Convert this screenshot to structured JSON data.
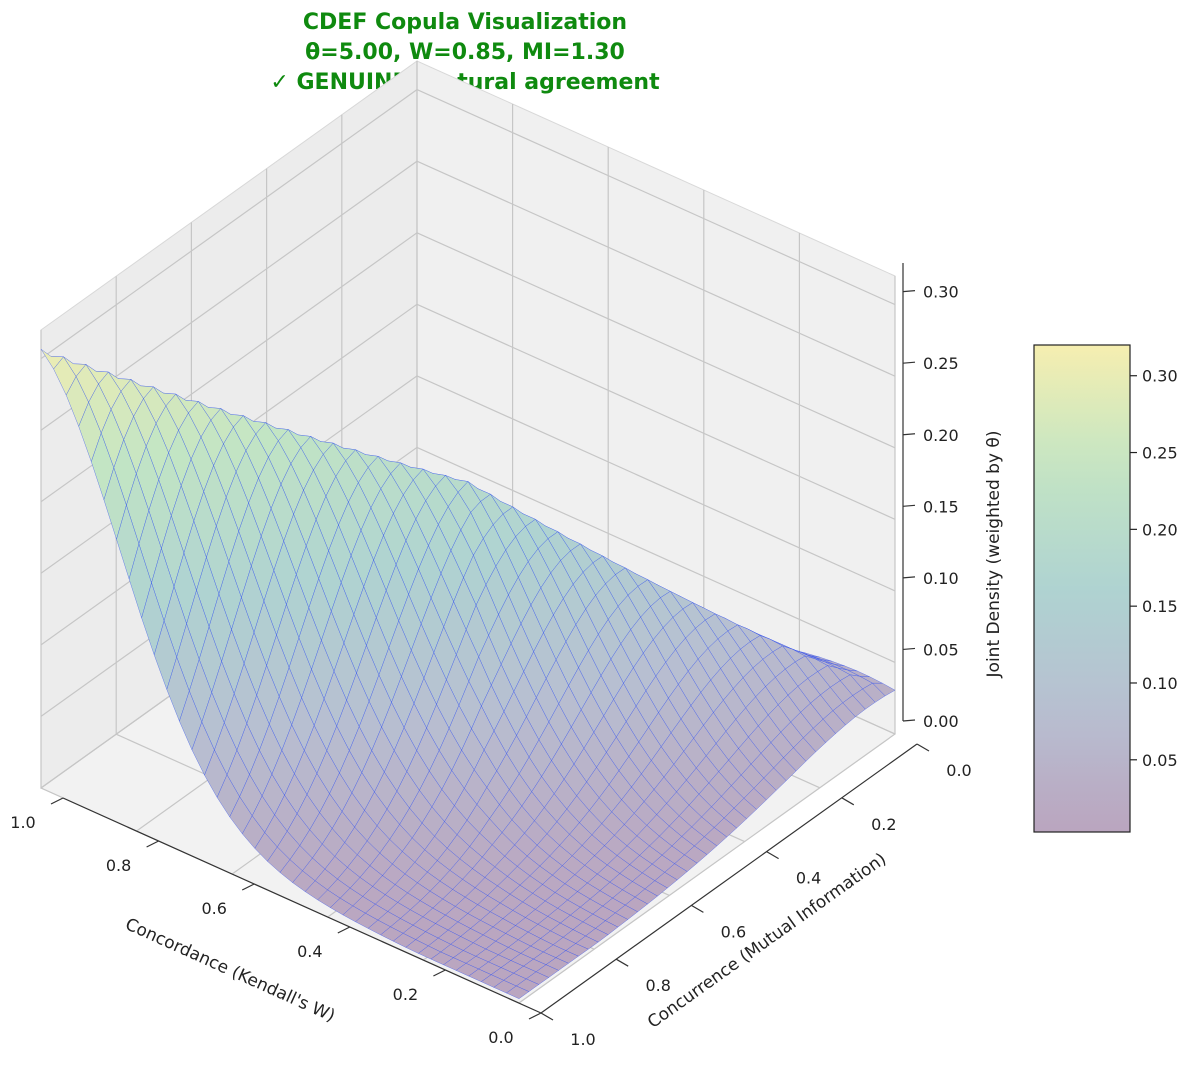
{
  "title": {
    "line1": "CDEF Copula Visualization",
    "line2": "θ=5.00, W=0.85, MI=1.30",
    "line3": "✓ GENUINE: Natural agreement",
    "color": "#0f8a0f"
  },
  "chart_data": {
    "type": "surface3d",
    "xlabel": "Concordance (Kendall's W)",
    "ylabel": "Concurrence (Mutual Information)",
    "zlabel": "Joint Density (weighted by θ)",
    "x_ticks": [
      "0.0",
      "0.2",
      "0.4",
      "0.6",
      "0.8",
      "1.0"
    ],
    "y_ticks": [
      "0.0",
      "0.2",
      "0.4",
      "0.6",
      "0.8",
      "1.0"
    ],
    "z_ticks": [
      "0.00",
      "0.05",
      "0.10",
      "0.15",
      "0.20",
      "0.25",
      "0.30"
    ],
    "xlim": [
      0,
      1
    ],
    "ylim": [
      0,
      1
    ],
    "zlim": [
      0,
      0.32
    ],
    "colormap": "viridis (alpha 0.3)",
    "wireframe_color": "#1f3fe0",
    "colorbar": {
      "ticks": [
        "0.05",
        "0.10",
        "0.15",
        "0.20",
        "0.25",
        "0.30"
      ],
      "range": [
        0.003,
        0.32
      ]
    },
    "grid": true,
    "surface_samples": [
      {
        "x": 1.0,
        "y": 0.0,
        "z": 0.003
      },
      {
        "x": 1.0,
        "y": 1.0,
        "z": 0.3
      },
      {
        "x": 0.0,
        "y": 1.0,
        "z": 0.02
      },
      {
        "x": 0.0,
        "y": 0.0,
        "z": 0.003
      },
      {
        "x": 0.5,
        "y": 0.5,
        "z": 0.1
      }
    ]
  }
}
